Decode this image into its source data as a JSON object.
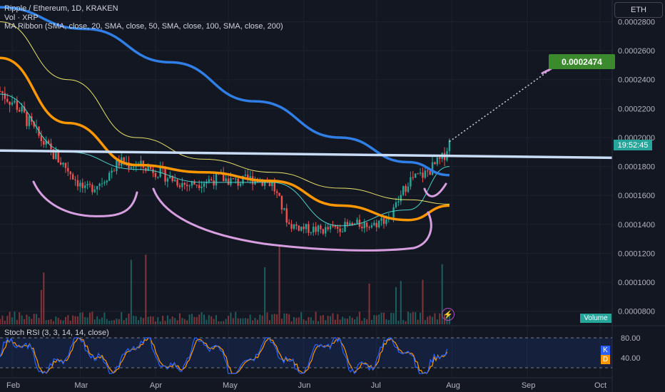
{
  "header": {
    "symbol_title": "Ripple / Ethereum, 1D, KRAKEN",
    "volume_legend": "Vol · XRP",
    "ma_ribbon_legend": "MA Ribbon (SMA, close, 20, SMA, close, 50, SMA, close, 100, SMA, close, 200)",
    "currency_badge": "ETH"
  },
  "price_scale": {
    "ticks": [
      "0.0002800",
      "0.0002600",
      "0.0002400",
      "0.0002200",
      "0.0002000",
      "0.0001800",
      "0.0001600",
      "0.0001400",
      "0.0001200",
      "0.0001000",
      "0.0000800"
    ],
    "countdown_label": "19:52:45",
    "target_label": "0.0002474"
  },
  "volume_pane": {
    "tag": "Volume"
  },
  "stoch_pane": {
    "legend": "Stoch RSI (3, 3, 14, 14, close)",
    "ticks": [
      "80.00",
      "40.00"
    ],
    "k_tag": "K",
    "d_tag": "D"
  },
  "time_axis": {
    "ticks": [
      "Feb",
      "Mar",
      "Apr",
      "May",
      "Jun",
      "Jul",
      "Aug",
      "Sep",
      "Oct"
    ]
  },
  "colors": {
    "background": "#131722",
    "up": "#26a69a",
    "down": "#ef5350",
    "ma20": "#4dd0c8",
    "ma50": "#ff9800",
    "ma100": "#e8e26a",
    "ma200": "#2f7fe6",
    "neckline": "#c8dcf5",
    "annotation": "#d79ee0",
    "stoch_k": "#2962ff",
    "stoch_d": "#ff9800"
  },
  "chart_data": {
    "type": "candlestick",
    "title": "Ripple / Ethereum, 1D, KRAKEN",
    "ylim": [
      7e-05,
      0.000295
    ],
    "x_range": [
      "Jan 27",
      "Oct 6"
    ],
    "last_price": 0.0001972,
    "projection_target": 0.0002474,
    "neckline": {
      "from": [
        "Jan 27",
        0.000191
      ],
      "to": [
        "Oct 6",
        0.000186
      ]
    },
    "price_path": [
      [
        "Jan 27",
        0.000232
      ],
      [
        "Feb 3",
        0.000222
      ],
      [
        "Feb 10",
        0.000205
      ],
      [
        "Feb 17",
        0.00019
      ],
      [
        "Feb 24",
        0.000178
      ],
      [
        "Mar 3",
        0.000163
      ],
      [
        "Mar 10",
        0.00017
      ],
      [
        "Mar 17",
        0.000183
      ],
      [
        "Mar 24",
        0.000181
      ],
      [
        "Mar 31",
        0.000178
      ],
      [
        "Apr 7",
        0.000172
      ],
      [
        "Apr 14",
        0.000167
      ],
      [
        "Apr 21",
        0.00017
      ],
      [
        "Apr 28",
        0.000172
      ],
      [
        "May 5",
        0.000169
      ],
      [
        "May 12",
        0.000172
      ],
      [
        "May 19",
        0.000168
      ],
      [
        "May 26",
        0.00014
      ],
      [
        "Jun 2",
        0.000137
      ],
      [
        "Jun 9",
        0.000136
      ],
      [
        "Jun 16",
        0.000138
      ],
      [
        "Jun 23",
        0.00014
      ],
      [
        "Jun 30",
        0.00014
      ],
      [
        "Jul 7",
        0.000146
      ],
      [
        "Jul 14",
        0.00017
      ],
      [
        "Jul 21",
        0.000175
      ],
      [
        "Jul 28",
        0.000185
      ],
      [
        "Jul 31",
        0.000197
      ]
    ],
    "series": [
      {
        "name": "SMA 20",
        "points": [
          [
            "Jan 27",
            0.00023
          ],
          [
            "Feb 24",
            0.00019
          ],
          [
            "Mar 24",
            0.000178
          ],
          [
            "Apr 21",
            0.000169
          ],
          [
            "May 19",
            0.000169
          ],
          [
            "Jun 16",
            0.000139
          ],
          [
            "Jul 14",
            0.00015
          ],
          [
            "Jul 31",
            0.00018
          ]
        ]
      },
      {
        "name": "SMA 50",
        "points": [
          [
            "Jan 27",
            0.000255
          ],
          [
            "Feb 24",
            0.00021
          ],
          [
            "Mar 24",
            0.000181
          ],
          [
            "Apr 21",
            0.000176
          ],
          [
            "May 19",
            0.00017
          ],
          [
            "Jun 16",
            0.000153
          ],
          [
            "Jul 14",
            0.000143
          ],
          [
            "Jul 31",
            0.000153
          ]
        ]
      },
      {
        "name": "SMA 100",
        "points": [
          [
            "Jan 27",
            0.00028
          ],
          [
            "Feb 24",
            0.00024
          ],
          [
            "Mar 24",
            0.0002
          ],
          [
            "Apr 21",
            0.000185
          ],
          [
            "May 19",
            0.000176
          ],
          [
            "Jun 16",
            0.000165
          ],
          [
            "Jul 14",
            0.000157
          ],
          [
            "Jul 31",
            0.000154
          ]
        ]
      },
      {
        "name": "SMA 200",
        "points": [
          [
            "Jan 27",
            0.00029
          ],
          [
            "Mar 3",
            0.000275
          ],
          [
            "Apr 7",
            0.000252
          ],
          [
            "May 12",
            0.000225
          ],
          [
            "Jun 16",
            0.0002
          ],
          [
            "Jul 14",
            0.000183
          ],
          [
            "Jul 31",
            0.000174
          ]
        ]
      }
    ],
    "stoch_rsi": {
      "ylim": [
        0,
        100
      ],
      "levels": [
        80,
        20
      ]
    }
  }
}
